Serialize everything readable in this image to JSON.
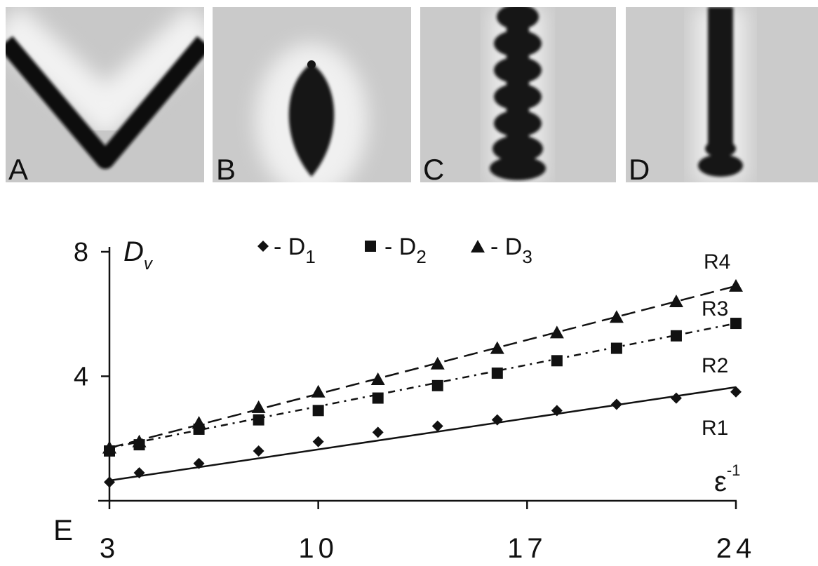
{
  "panels": [
    {
      "letter": "A",
      "shape": "v-shape"
    },
    {
      "letter": "B",
      "shape": "lens"
    },
    {
      "letter": "C",
      "shape": "bead-chain"
    },
    {
      "letter": "D",
      "shape": "column"
    }
  ],
  "chart_label": "E",
  "chart_data": {
    "type": "scatter",
    "xlabel": "ε",
    "xlabel_sup": "-1",
    "ylabel": "D",
    "ylabel_sub": "v",
    "xlim": [
      3,
      24
    ],
    "ylim": [
      0,
      8
    ],
    "xticks": [
      3,
      10,
      17,
      24
    ],
    "yticks": [
      4,
      8
    ],
    "legend_position": "top",
    "series": [
      {
        "name": "D",
        "name_sub": "1",
        "legend_prefix": "- ",
        "marker": "diamond",
        "x": [
          3,
          4,
          6,
          8,
          10,
          12,
          14,
          16,
          18,
          20,
          22,
          24
        ],
        "y": [
          0.6,
          0.9,
          1.2,
          1.6,
          1.9,
          2.2,
          2.4,
          2.6,
          2.9,
          3.1,
          3.3,
          3.5
        ]
      },
      {
        "name": "D",
        "name_sub": "2",
        "legend_prefix": "- ",
        "marker": "square",
        "x": [
          3,
          4,
          6,
          8,
          10,
          12,
          14,
          16,
          18,
          20,
          22,
          24
        ],
        "y": [
          1.6,
          1.8,
          2.3,
          2.6,
          2.9,
          3.3,
          3.7,
          4.1,
          4.5,
          4.9,
          5.3,
          5.7
        ]
      },
      {
        "name": "D",
        "name_sub": "3",
        "legend_prefix": "- ",
        "marker": "triangle",
        "x": [
          3,
          4,
          6,
          8,
          10,
          12,
          14,
          16,
          18,
          20,
          22,
          24
        ],
        "y": [
          1.7,
          1.9,
          2.5,
          3.0,
          3.5,
          3.9,
          4.4,
          4.9,
          5.4,
          5.9,
          6.4,
          6.9
        ]
      }
    ],
    "fit_lines": [
      {
        "label": "R1",
        "style": "solid",
        "x": [
          3,
          24
        ],
        "y": [
          0.65,
          3.65
        ]
      },
      {
        "label": "R2",
        "style": "dash-dot",
        "x": [
          3,
          24
        ],
        "y": [
          1.7,
          5.7
        ]
      },
      {
        "label": "R3",
        "style": "dashed",
        "x": [
          3,
          24
        ],
        "y": [
          1.7,
          6.9
        ]
      }
    ],
    "annotations": [
      "R1",
      "R2",
      "R3",
      "R4"
    ]
  }
}
